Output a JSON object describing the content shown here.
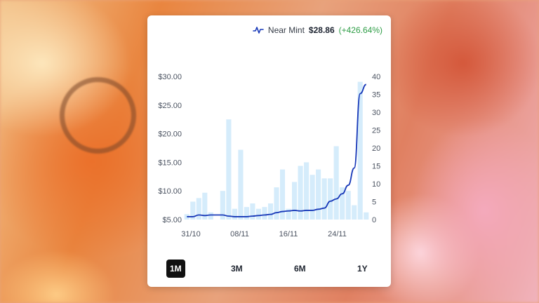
{
  "header": {
    "condition": "Near Mint",
    "price": "$28.86",
    "change": "(+426.64%)",
    "icon": "activity-pulse-icon"
  },
  "timeframe": {
    "options": [
      "1M",
      "3M",
      "6M",
      "1Y"
    ],
    "selected": "1M"
  },
  "colors": {
    "bar": "#d5ecfb",
    "line": "#1738b8",
    "positive": "#2e9d46"
  },
  "chart_data": {
    "type": "bar+line",
    "x_tick_labels": [
      "31/10",
      "08/11",
      "16/11",
      "24/11"
    ],
    "y_left": {
      "ticks": [
        "$5.00",
        "$10.00",
        "$15.00",
        "$20.00",
        "$25.00",
        "$30.00"
      ],
      "range": [
        5,
        30
      ]
    },
    "y_right": {
      "ticks": [
        "0",
        "5",
        "10",
        "15",
        "20",
        "25",
        "30",
        "35",
        "40"
      ],
      "range": [
        0,
        40
      ]
    },
    "bars": {
      "axis": "right",
      "values": [
        1.5,
        5,
        6,
        7.5,
        2,
        0,
        8,
        28,
        3,
        19.5,
        3.5,
        4.5,
        3,
        3.5,
        4.5,
        9,
        14,
        3,
        10.5,
        15,
        16,
        12.5,
        14,
        11.5,
        11.5,
        20.5,
        9,
        8,
        4,
        38.5,
        2
      ]
    },
    "line": {
      "axis": "left",
      "values": [
        5.5,
        5.5,
        5.8,
        5.7,
        5.8,
        5.8,
        5.8,
        5.6,
        5.5,
        5.5,
        5.5,
        5.6,
        5.7,
        5.8,
        5.9,
        6.2,
        6.4,
        6.5,
        6.6,
        6.5,
        6.6,
        6.6,
        6.8,
        7.0,
        8.2,
        8.6,
        9.5,
        11.0,
        14.0,
        27.0,
        28.6
      ]
    },
    "grid": false,
    "legend": "none"
  }
}
